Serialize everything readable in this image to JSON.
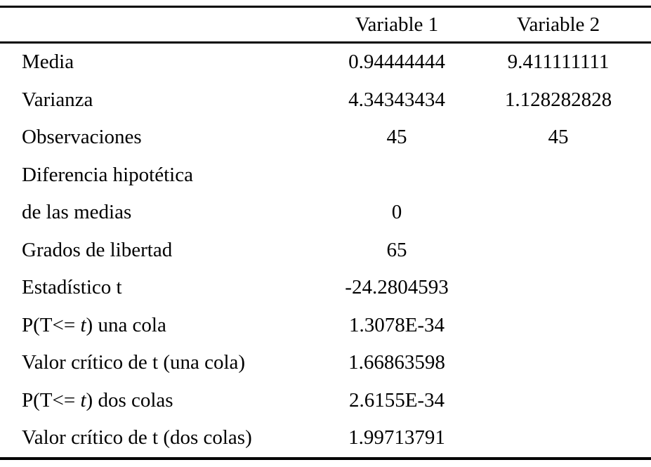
{
  "table": {
    "title_semantic": "t-test two-sample results table",
    "colors": {
      "text": "#000000",
      "background": "#ffffff",
      "rule": "#000000"
    },
    "header": {
      "label": "",
      "col1": "Variable 1",
      "col2": "Variable 2"
    },
    "rows": [
      {
        "pre": "Media",
        "it": "",
        "post": "",
        "v1": "0.94444444",
        "v2": "9.411111111"
      },
      {
        "pre": "Varianza",
        "it": "",
        "post": "",
        "v1": "4.34343434",
        "v2": "1.128282828"
      },
      {
        "pre": "Observaciones",
        "it": "",
        "post": "",
        "v1": "45",
        "v2": "45"
      },
      {
        "pre": "Diferencia hipotética",
        "it": "",
        "post": "",
        "v1": "",
        "v2": ""
      },
      {
        "pre": "de las medias",
        "it": "",
        "post": "",
        "v1": "0",
        "v2": ""
      },
      {
        "pre": "Grados de libertad",
        "it": "",
        "post": "",
        "v1": "65",
        "v2": ""
      },
      {
        "pre": "Estadístico t",
        "it": "",
        "post": "",
        "v1": "-24.2804593",
        "v2": ""
      },
      {
        "pre": "P(T<= ",
        "it": "t",
        "post": ") una cola",
        "v1": "1.3078E-34",
        "v2": ""
      },
      {
        "pre": "Valor crítico de t (una cola)",
        "it": "",
        "post": "",
        "v1": "1.66863598",
        "v2": ""
      },
      {
        "pre": "P(T<= ",
        "it": "t",
        "post": ") dos colas",
        "v1": "2.6155E-34",
        "v2": ""
      },
      {
        "pre": "Valor crítico de t (dos colas)",
        "it": "",
        "post": "",
        "v1": "1.99713791",
        "v2": ""
      }
    ]
  }
}
